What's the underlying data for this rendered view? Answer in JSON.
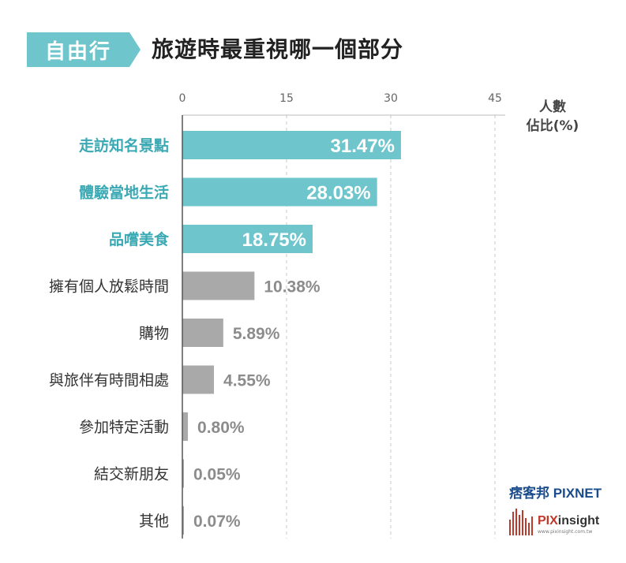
{
  "header": {
    "tag": "自由行",
    "title": "旅遊時最重視哪一個部分"
  },
  "unit_label": [
    "人數",
    "佔比(%)"
  ],
  "brands": {
    "pixnet": "痞客邦 PIXNET",
    "pixinsight_left": "PIX",
    "pixinsight_right": "insight",
    "pixinsight_url": "www.pixinsight.com.tw"
  },
  "colors": {
    "highlight": "#6fc5cc",
    "highlight_label": "#3aa9b4",
    "normal": "#a9a9a9",
    "normal_label": "#333333",
    "value_gray": "#8c8c8c"
  },
  "chart_data": {
    "type": "bar",
    "orientation": "horizontal",
    "title": "旅遊時最重視哪一個部分",
    "xlabel": "人數佔比(%)",
    "xlim": [
      0,
      48
    ],
    "xticks": [
      0,
      15,
      30,
      45
    ],
    "grid": true,
    "categories": [
      "走訪知名景點",
      "體驗當地生活",
      "品嚐美食",
      "擁有個人放鬆時間",
      "購物",
      "與旅伴有時間相處",
      "參加特定活動",
      "結交新朋友",
      "其他"
    ],
    "values": [
      31.47,
      28.03,
      18.75,
      10.38,
      5.89,
      4.55,
      0.8,
      0.05,
      0.07
    ],
    "labels": [
      "31.47%",
      "28.03%",
      "18.75%",
      "10.38%",
      "5.89%",
      "4.55%",
      "0.80%",
      "0.05%",
      "0.07%"
    ],
    "highlighted": [
      true,
      true,
      true,
      false,
      false,
      false,
      false,
      false,
      false
    ]
  }
}
